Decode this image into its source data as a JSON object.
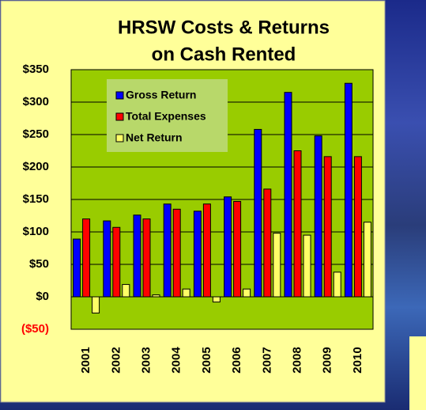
{
  "chart_data": {
    "type": "bar",
    "title_lines": [
      "HRSW Costs & Returns",
      "on Cash Rented"
    ],
    "categories": [
      "2001",
      "2002",
      "2003",
      "2004",
      "2005",
      "2006",
      "2007",
      "2008",
      "2009",
      "2010"
    ],
    "series": [
      {
        "name": "Gross Return",
        "color": "#0000ff",
        "values": [
          89,
          117,
          126,
          143,
          132,
          154,
          258,
          315,
          248,
          329
        ]
      },
      {
        "name": "Total Expenses",
        "color": "#ff0000",
        "values": [
          120,
          107,
          120,
          135,
          143,
          147,
          166,
          225,
          216,
          216
        ]
      },
      {
        "name": "Net Return",
        "color": "#ffff66",
        "values": [
          -25,
          19,
          3,
          12,
          -8,
          12,
          98,
          95,
          38,
          115
        ]
      }
    ],
    "ylim": [
      -50,
      350
    ],
    "yticks": [
      {
        "value": -50,
        "label": "($50)"
      },
      {
        "value": 0,
        "label": "$0"
      },
      {
        "value": 50,
        "label": "$50"
      },
      {
        "value": 100,
        "label": "$100"
      },
      {
        "value": 150,
        "label": "$150"
      },
      {
        "value": 200,
        "label": "$200"
      },
      {
        "value": 250,
        "label": "$250"
      },
      {
        "value": 300,
        "label": "$300"
      },
      {
        "value": 350,
        "label": "$350"
      }
    ],
    "negative_tick_color": "#ff0000",
    "grid": true,
    "legend": "upper left"
  }
}
